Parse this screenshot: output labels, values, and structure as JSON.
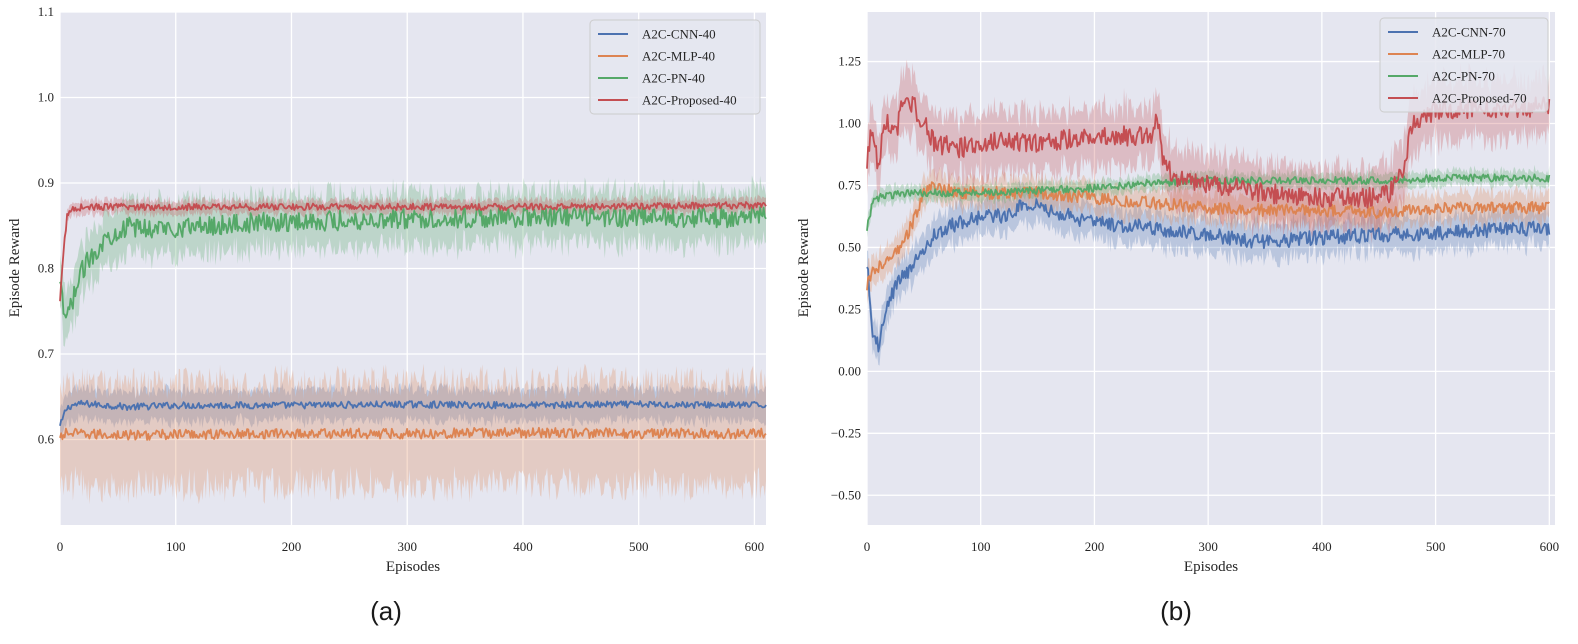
{
  "chart_data": [
    {
      "type": "line",
      "caption": "(a)",
      "xlabel": "Episodes",
      "ylabel": "Episode Reward",
      "xlim": [
        0,
        610
      ],
      "ylim": [
        0.5,
        1.1
      ],
      "xticks": [
        0,
        100,
        200,
        300,
        400,
        500,
        600
      ],
      "xtick_labels": [
        "0",
        "100",
        "200",
        "300",
        "400",
        "500",
        "600"
      ],
      "yticks": [
        0.6,
        0.7,
        0.8,
        0.9,
        1.0,
        1.1
      ],
      "ytick_labels": [
        "0.6",
        "0.7",
        "0.8",
        "0.9",
        "1.0",
        "1.1"
      ],
      "legend_position": "top-right",
      "series": [
        {
          "name": "A2C-CNN-40",
          "color": "#4c72b0",
          "x": [
            0,
            5,
            10,
            20,
            40,
            60,
            100,
            200,
            300,
            400,
            500,
            610
          ],
          "values": [
            0.615,
            0.635,
            0.64,
            0.642,
            0.64,
            0.638,
            0.64,
            0.64,
            0.641,
            0.64,
            0.641,
            0.64
          ],
          "band": 0.018,
          "noise": 0.004
        },
        {
          "name": "A2C-MLP-40",
          "color": "#dd8452",
          "x": [
            0,
            5,
            10,
            20,
            40,
            60,
            100,
            200,
            300,
            400,
            500,
            610
          ],
          "values": [
            0.6,
            0.608,
            0.607,
            0.606,
            0.606,
            0.605,
            0.606,
            0.607,
            0.607,
            0.608,
            0.607,
            0.607
          ],
          "band": 0.06,
          "noise": 0.006
        },
        {
          "name": "A2C-PN-40",
          "color": "#55a868",
          "x": [
            0,
            3,
            6,
            10,
            15,
            20,
            25,
            30,
            40,
            50,
            60,
            80,
            100,
            150,
            200,
            300,
            400,
            500,
            610
          ],
          "values": [
            0.78,
            0.75,
            0.74,
            0.76,
            0.78,
            0.8,
            0.81,
            0.82,
            0.835,
            0.845,
            0.848,
            0.847,
            0.848,
            0.852,
            0.855,
            0.858,
            0.86,
            0.86,
            0.86
          ],
          "band": 0.03,
          "noise": 0.012
        },
        {
          "name": "A2C-Proposed-40",
          "color": "#c44e52",
          "x": [
            0,
            3,
            6,
            10,
            20,
            40,
            100,
            200,
            300,
            400,
            500,
            610
          ],
          "values": [
            0.76,
            0.82,
            0.86,
            0.87,
            0.872,
            0.872,
            0.872,
            0.872,
            0.872,
            0.872,
            0.873,
            0.874
          ],
          "band": 0.008,
          "noise": 0.004
        }
      ]
    },
    {
      "type": "line",
      "caption": "(b)",
      "xlabel": "Episodes",
      "ylabel": "Episode Reward",
      "xlim": [
        0,
        605
      ],
      "ylim": [
        -0.62,
        1.45
      ],
      "xticks": [
        0,
        100,
        200,
        300,
        400,
        500,
        600
      ],
      "xtick_labels": [
        "0",
        "100",
        "200",
        "300",
        "400",
        "500",
        "600"
      ],
      "yticks": [
        -0.5,
        -0.25,
        0.0,
        0.25,
        0.5,
        0.75,
        1.0,
        1.25
      ],
      "ytick_labels": [
        "−0.50",
        "−0.25",
        "0.00",
        "0.25",
        "0.50",
        "0.75",
        "1.00",
        "1.25"
      ],
      "legend_position": "top-right",
      "series": [
        {
          "name": "A2C-CNN-70",
          "color": "#4c72b0",
          "x": [
            0,
            5,
            10,
            20,
            30,
            40,
            50,
            60,
            80,
            100,
            120,
            140,
            160,
            200,
            250,
            300,
            350,
            400,
            450,
            500,
            550,
            600
          ],
          "values": [
            0.45,
            0.15,
            0.1,
            0.3,
            0.38,
            0.42,
            0.5,
            0.55,
            0.6,
            0.62,
            0.63,
            0.68,
            0.65,
            0.6,
            0.58,
            0.55,
            0.52,
            0.54,
            0.55,
            0.56,
            0.57,
            0.58
          ],
          "band": 0.07,
          "noise": 0.03
        },
        {
          "name": "A2C-MLP-70",
          "color": "#dd8452",
          "x": [
            0,
            5,
            10,
            20,
            30,
            40,
            50,
            60,
            80,
            100,
            150,
            200,
            250,
            300,
            350,
            400,
            450,
            500,
            550,
            600
          ],
          "values": [
            0.35,
            0.4,
            0.42,
            0.45,
            0.5,
            0.6,
            0.72,
            0.75,
            0.72,
            0.72,
            0.72,
            0.7,
            0.68,
            0.66,
            0.65,
            0.65,
            0.64,
            0.66,
            0.66,
            0.66
          ],
          "band": 0.06,
          "noise": 0.025
        },
        {
          "name": "A2C-PN-70",
          "color": "#55a868",
          "x": [
            0,
            5,
            10,
            20,
            40,
            60,
            100,
            150,
            200,
            250,
            300,
            350,
            400,
            450,
            500,
            550,
            600
          ],
          "values": [
            0.58,
            0.68,
            0.7,
            0.71,
            0.72,
            0.72,
            0.72,
            0.73,
            0.74,
            0.76,
            0.77,
            0.77,
            0.77,
            0.77,
            0.78,
            0.78,
            0.78
          ],
          "band": 0.03,
          "noise": 0.015
        },
        {
          "name": "A2C-Proposed-70",
          "color": "#c44e52",
          "x": [
            0,
            5,
            10,
            15,
            20,
            25,
            30,
            40,
            50,
            60,
            80,
            100,
            120,
            150,
            180,
            200,
            230,
            250,
            255,
            260,
            270,
            300,
            350,
            400,
            440,
            460,
            470,
            480,
            500,
            550,
            600
          ],
          "values": [
            0.85,
            1.0,
            0.8,
            1.02,
            1.0,
            0.95,
            1.05,
            1.08,
            1.0,
            0.92,
            0.9,
            0.92,
            0.93,
            0.92,
            0.94,
            0.95,
            0.95,
            0.96,
            1.05,
            0.85,
            0.78,
            0.76,
            0.72,
            0.7,
            0.7,
            0.72,
            0.8,
            1.0,
            1.05,
            1.06,
            1.07
          ],
          "band": 0.12,
          "noise": 0.04
        }
      ]
    }
  ]
}
